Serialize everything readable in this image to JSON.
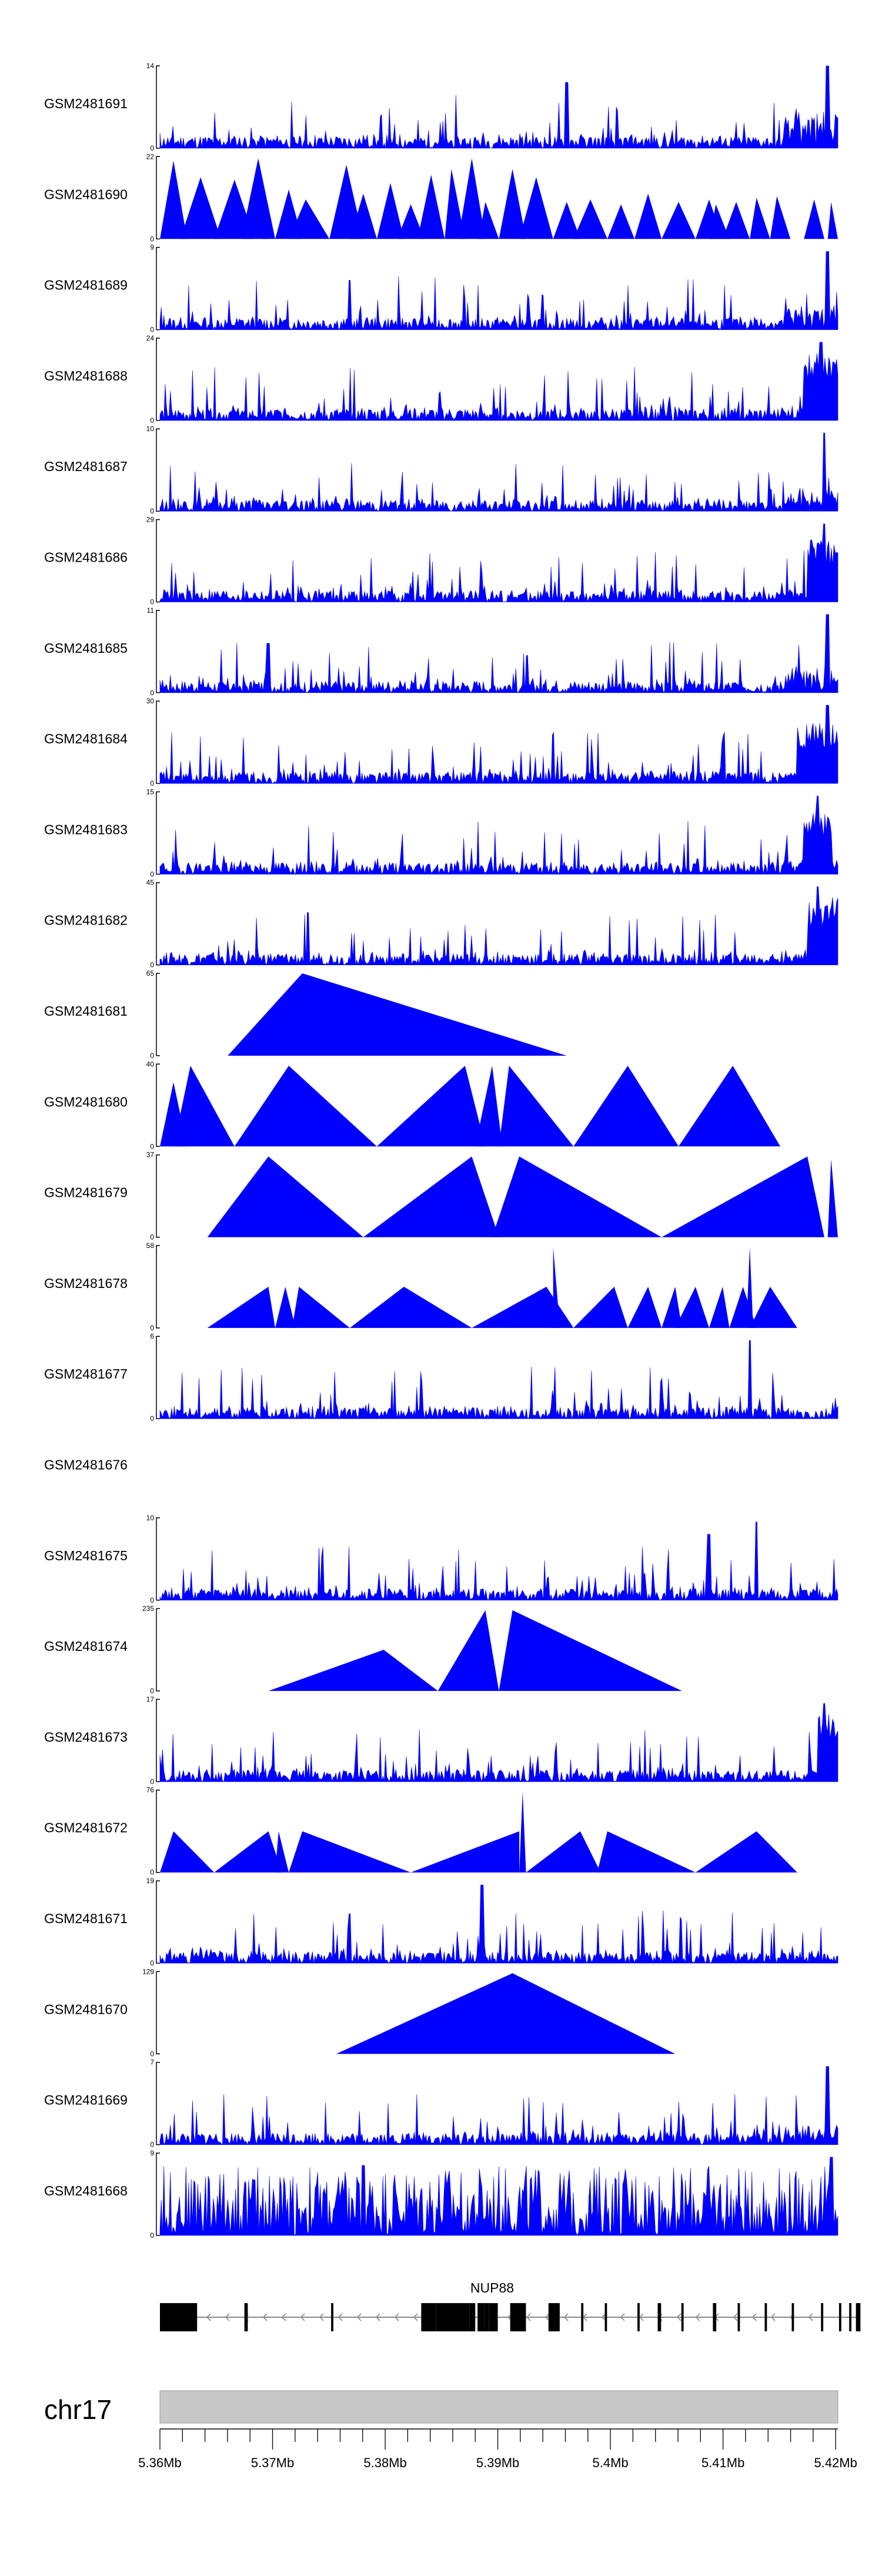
{
  "chart_data": {
    "type": "area",
    "title": "",
    "fill_color": "#0000FF",
    "tracks": [
      {
        "label": "GSM2481691",
        "ymax": "14",
        "pattern": "noise",
        "seed": 11,
        "peaks": [
          [
            0.6,
            0.8
          ],
          [
            0.985,
            1.0
          ]
        ],
        "tail": 0.45
      },
      {
        "label": "GSM2481690",
        "ymax": "22",
        "pattern": "triangles",
        "seed": 12,
        "tris": [
          [
            0.0,
            0.02,
            0.04,
            0.95
          ],
          [
            0.03,
            0.06,
            0.09,
            0.75
          ],
          [
            0.08,
            0.11,
            0.14,
            0.72
          ],
          [
            0.12,
            0.145,
            0.17,
            0.98
          ],
          [
            0.15,
            0.155,
            0.16,
            0.4
          ],
          [
            0.17,
            0.19,
            0.21,
            0.6
          ],
          [
            0.19,
            0.215,
            0.25,
            0.48
          ],
          [
            0.25,
            0.275,
            0.3,
            0.9
          ],
          [
            0.28,
            0.3,
            0.32,
            0.55
          ],
          [
            0.32,
            0.34,
            0.36,
            0.68
          ],
          [
            0.35,
            0.37,
            0.39,
            0.42
          ],
          [
            0.38,
            0.4,
            0.42,
            0.78
          ],
          [
            0.42,
            0.43,
            0.45,
            0.85
          ],
          [
            0.44,
            0.46,
            0.48,
            0.98
          ],
          [
            0.47,
            0.48,
            0.5,
            0.45
          ],
          [
            0.5,
            0.52,
            0.54,
            0.85
          ],
          [
            0.53,
            0.555,
            0.58,
            0.75
          ],
          [
            0.58,
            0.6,
            0.62,
            0.45
          ],
          [
            0.61,
            0.635,
            0.66,
            0.48
          ],
          [
            0.66,
            0.68,
            0.7,
            0.42
          ],
          [
            0.7,
            0.72,
            0.74,
            0.55
          ],
          [
            0.74,
            0.765,
            0.79,
            0.45
          ],
          [
            0.79,
            0.81,
            0.83,
            0.48
          ],
          [
            0.81,
            0.82,
            0.84,
            0.42
          ],
          [
            0.83,
            0.85,
            0.87,
            0.45
          ],
          [
            0.87,
            0.88,
            0.9,
            0.5
          ],
          [
            0.9,
            0.91,
            0.93,
            0.52
          ],
          [
            0.95,
            0.965,
            0.98,
            0.48
          ],
          [
            0.985,
            0.99,
            1.0,
            0.45
          ]
        ]
      },
      {
        "label": "GSM2481689",
        "ymax": "9",
        "pattern": "noise",
        "seed": 13,
        "peaks": [
          [
            0.28,
            0.6
          ],
          [
            0.985,
            0.95
          ]
        ],
        "tail": 0.3
      },
      {
        "label": "GSM2481688",
        "ymax": "24",
        "pattern": "noise",
        "seed": 14,
        "peaks": [
          [
            0.975,
            0.95
          ]
        ],
        "tail": 0.15,
        "cluster": [
          0.95,
          1.0,
          0.85
        ]
      },
      {
        "label": "GSM2481687",
        "ymax": "10",
        "pattern": "noise",
        "seed": 15,
        "peaks": [
          [
            0.98,
            0.95
          ]
        ],
        "tail": 0.3
      },
      {
        "label": "GSM2481686",
        "ymax": "29",
        "pattern": "noise",
        "seed": 16,
        "peaks": [
          [
            0.98,
            0.95
          ]
        ],
        "tail": 0.12,
        "cluster": [
          0.955,
          1.0,
          0.8
        ]
      },
      {
        "label": "GSM2481685",
        "ymax": "11",
        "pattern": "noise",
        "seed": 17,
        "peaks": [
          [
            0.16,
            0.6
          ],
          [
            0.985,
            0.95
          ]
        ],
        "tail": 0.35
      },
      {
        "label": "GSM2481684",
        "ymax": "30",
        "pattern": "noise",
        "seed": 18,
        "peaks": [
          [
            0.985,
            0.95
          ]
        ],
        "tail": 0.12,
        "cluster": [
          0.94,
          1.0,
          0.75
        ]
      },
      {
        "label": "GSM2481683",
        "ymax": "15",
        "pattern": "noise",
        "seed": 19,
        "peaks": [
          [
            0.97,
            0.95
          ]
        ],
        "tail": 0.2,
        "cluster": [
          0.95,
          0.99,
          0.8
        ]
      },
      {
        "label": "GSM2481682",
        "ymax": "45",
        "pattern": "noise",
        "seed": 20,
        "peaks": [
          [
            0.97,
            0.95
          ]
        ],
        "tail": 0.12,
        "cluster": [
          0.955,
          1.0,
          0.85
        ]
      },
      {
        "label": "GSM2481681",
        "ymax": "65",
        "pattern": "triangles",
        "seed": 21,
        "tris": [
          [
            0.1,
            0.21,
            0.6,
            1.0
          ]
        ]
      },
      {
        "label": "GSM2481680",
        "ymax": "40",
        "pattern": "triangles",
        "seed": 22,
        "tris": [
          [
            0.0,
            0.02,
            0.04,
            0.78
          ],
          [
            0.02,
            0.045,
            0.11,
            0.98
          ],
          [
            0.11,
            0.19,
            0.32,
            0.98
          ],
          [
            0.32,
            0.45,
            0.48,
            0.98
          ],
          [
            0.465,
            0.49,
            0.505,
            0.98
          ],
          [
            0.5,
            0.515,
            0.61,
            0.98
          ],
          [
            0.61,
            0.69,
            0.765,
            0.98
          ],
          [
            0.765,
            0.845,
            0.915,
            0.98
          ]
        ]
      },
      {
        "label": "GSM2481679",
        "ymax": "37",
        "pattern": "triangles",
        "seed": 23,
        "tris": [
          [
            0.07,
            0.16,
            0.3,
            0.98
          ],
          [
            0.3,
            0.46,
            0.5,
            0.98
          ],
          [
            0.49,
            0.53,
            0.74,
            0.98
          ],
          [
            0.74,
            0.955,
            0.98,
            0.98
          ],
          [
            0.985,
            0.99,
            1.0,
            0.95
          ]
        ]
      },
      {
        "label": "GSM2481678",
        "ymax": "58",
        "pattern": "triangles",
        "seed": 24,
        "tris": [
          [
            0.07,
            0.16,
            0.17,
            0.5
          ],
          [
            0.17,
            0.185,
            0.2,
            0.5
          ],
          [
            0.195,
            0.205,
            0.28,
            0.5
          ],
          [
            0.28,
            0.36,
            0.46,
            0.5
          ],
          [
            0.46,
            0.57,
            0.61,
            0.5
          ],
          [
            0.58,
            0.58,
            0.59,
            0.98
          ],
          [
            0.61,
            0.67,
            0.69,
            0.5
          ],
          [
            0.69,
            0.72,
            0.74,
            0.5
          ],
          [
            0.74,
            0.76,
            0.77,
            0.5
          ],
          [
            0.76,
            0.79,
            0.81,
            0.5
          ],
          [
            0.81,
            0.83,
            0.84,
            0.5
          ],
          [
            0.84,
            0.86,
            0.88,
            0.5
          ],
          [
            0.865,
            0.87,
            0.875,
            0.98
          ],
          [
            0.87,
            0.9,
            0.94,
            0.5
          ]
        ]
      },
      {
        "label": "GSM2481677",
        "ymax": "6",
        "pattern": "noise",
        "seed": 25,
        "peaks": [
          [
            0.87,
            0.95
          ]
        ],
        "tail": 0.0
      },
      {
        "label": "GSM2481676",
        "ymax": "",
        "pattern": "empty",
        "seed": 26
      },
      {
        "label": "GSM2481675",
        "ymax": "10",
        "pattern": "noise",
        "seed": 27,
        "peaks": [
          [
            0.81,
            0.8
          ],
          [
            0.88,
            0.95
          ]
        ],
        "tail": 0.0
      },
      {
        "label": "GSM2481674",
        "ymax": "235",
        "pattern": "triangles",
        "seed": 28,
        "tris": [
          [
            0.16,
            0.33,
            0.41,
            0.5
          ],
          [
            0.41,
            0.48,
            0.5,
            0.98
          ],
          [
            0.5,
            0.52,
            0.77,
            0.98
          ]
        ]
      },
      {
        "label": "GSM2481673",
        "ymax": "17",
        "pattern": "noise",
        "seed": 29,
        "peaks": [
          [
            0.98,
            0.95
          ]
        ],
        "tail": 0.0,
        "cluster": [
          0.97,
          1.0,
          0.85
        ]
      },
      {
        "label": "GSM2481672",
        "ymax": "76",
        "pattern": "triangles",
        "seed": 30,
        "tris": [
          [
            0.0,
            0.02,
            0.08,
            0.5
          ],
          [
            0.08,
            0.16,
            0.18,
            0.5
          ],
          [
            0.17,
            0.175,
            0.19,
            0.5
          ],
          [
            0.19,
            0.21,
            0.37,
            0.5
          ],
          [
            0.37,
            0.53,
            0.53,
            0.5
          ],
          [
            0.53,
            0.535,
            0.54,
            0.98
          ],
          [
            0.54,
            0.62,
            0.65,
            0.5
          ],
          [
            0.645,
            0.66,
            0.79,
            0.5
          ],
          [
            0.79,
            0.88,
            0.94,
            0.5
          ]
        ]
      },
      {
        "label": "GSM2481671",
        "ymax": "19",
        "pattern": "noise",
        "seed": 31,
        "peaks": [
          [
            0.28,
            0.6
          ],
          [
            0.475,
            0.95
          ]
        ],
        "tail": 0.0
      },
      {
        "label": "GSM2481670",
        "ymax": "129",
        "pattern": "triangles",
        "seed": 32,
        "tris": [
          [
            0.26,
            0.52,
            0.76,
            0.98
          ]
        ]
      },
      {
        "label": "GSM2481669",
        "ymax": "7",
        "pattern": "noise",
        "seed": 33,
        "peaks": [
          [
            0.985,
            0.95
          ]
        ],
        "tail": 0.25
      },
      {
        "label": "GSM2481668",
        "ymax": "9",
        "pattern": "noise",
        "seed": 34,
        "peaks": [
          [
            0.3,
            0.85
          ],
          [
            0.99,
            0.95
          ]
        ],
        "tail": 0.0,
        "dense": true
      }
    ],
    "gene": {
      "name": "NUP88",
      "exons": [
        [
          5.36,
          5.3605
        ],
        [
          5.3604,
          5.3633
        ],
        [
          5.3675,
          5.3678
        ],
        [
          5.3752,
          5.3754
        ],
        [
          5.3832,
          5.3845
        ],
        [
          5.3845,
          5.3875
        ],
        [
          5.3875,
          5.388
        ],
        [
          5.3882,
          5.3888
        ],
        [
          5.3888,
          5.3892
        ],
        [
          5.3892,
          5.39
        ],
        [
          5.3911,
          5.3925
        ],
        [
          5.3945,
          5.3955
        ],
        [
          5.3974,
          5.3976
        ],
        [
          5.3995,
          5.3997
        ],
        [
          5.4024,
          5.4026
        ],
        [
          5.4042,
          5.4045
        ],
        [
          5.4063,
          5.4065
        ],
        [
          5.4091,
          5.4094
        ],
        [
          5.4113,
          5.4115
        ],
        [
          5.4137,
          5.4139
        ],
        [
          5.4161,
          5.4163
        ],
        [
          5.4187,
          5.4189
        ],
        [
          5.4203,
          5.4205
        ],
        [
          5.4212,
          5.4214
        ],
        [
          5.4218,
          5.4222
        ]
      ],
      "strand": "-"
    },
    "chromosome": "chr17",
    "xlim": [
      5.36,
      5.4202
    ],
    "x_ticks": [
      "5.36Mb",
      "5.37Mb",
      "5.38Mb",
      "5.39Mb",
      "5.4Mb",
      "5.41Mb",
      "5.42Mb"
    ],
    "x_tick_values": [
      5.36,
      5.37,
      5.38,
      5.39,
      5.4,
      5.41,
      5.42
    ],
    "xlabel": "",
    "ylabel": ""
  }
}
